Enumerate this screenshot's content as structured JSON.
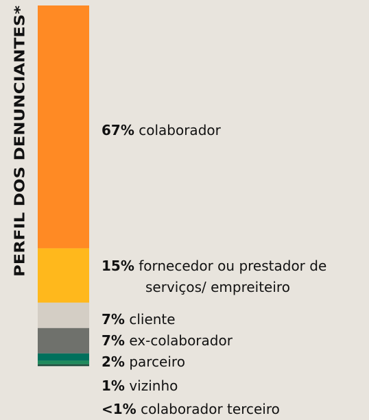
{
  "chart_data": {
    "type": "stacked-bar",
    "title": "PERFIL DOS DENUNCIANTES*",
    "categories": [
      "colaborador",
      "fornecedor ou prestador de serviços/ empreiteiro",
      "cliente",
      "ex-colaborador",
      "parceiro",
      "vizinho",
      "colaborador terceiro"
    ],
    "values": [
      67,
      15,
      7,
      7,
      2,
      1,
      0.5
    ],
    "value_labels": [
      "67%",
      "15%",
      "7%",
      "7%",
      "2%",
      "1%",
      "<1%"
    ],
    "colors": [
      "#ff8a24",
      "#ffb81c",
      "#d4cec5",
      "#6f716c",
      "#00705c",
      "#1f8a5c",
      "#1b4a3b"
    ]
  }
}
